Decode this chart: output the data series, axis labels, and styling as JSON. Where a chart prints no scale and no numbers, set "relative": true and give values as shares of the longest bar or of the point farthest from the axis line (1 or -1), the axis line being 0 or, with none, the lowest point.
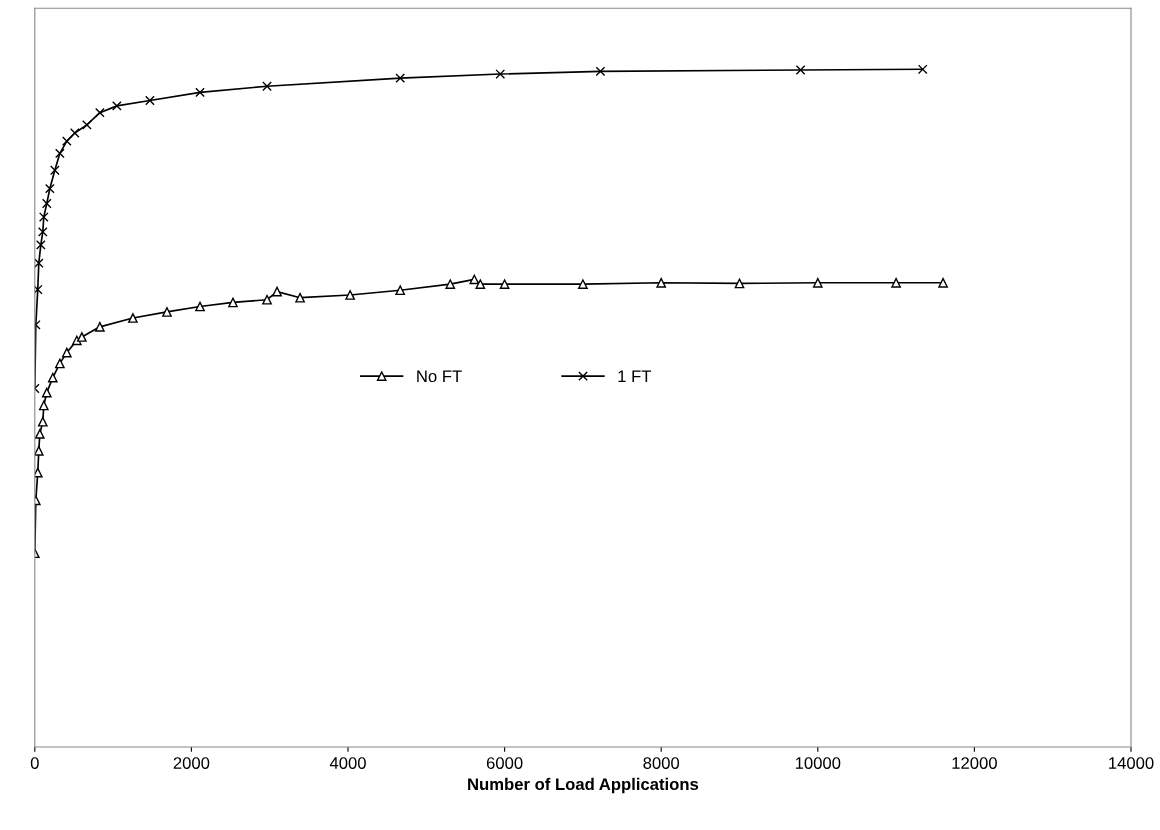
{
  "chart_data": {
    "type": "line",
    "xlabel": "Number of Load Applications",
    "relative": true,
    "xlim": [
      0,
      14000
    ],
    "xticks": [
      0,
      2000,
      4000,
      6000,
      8000,
      10000,
      12000,
      14000
    ],
    "grid": false,
    "legend": "center",
    "line_style": "solid",
    "series": [
      {
        "name": "No FT",
        "color": "#000000",
        "marker": "triangle",
        "x": [
          0,
          13,
          38,
          51,
          64,
          102,
          115,
          153,
          230,
          320,
          409,
          537,
          601,
          831,
          1253,
          1688,
          2110,
          2531,
          2966,
          3094,
          3388,
          4027,
          4667,
          5306,
          5613,
          5690,
          6000,
          7000,
          8000,
          9000,
          10000,
          11000,
          11600
        ],
        "values": [
          0.286,
          0.364,
          0.405,
          0.437,
          0.462,
          0.48,
          0.504,
          0.523,
          0.545,
          0.566,
          0.582,
          0.6,
          0.605,
          0.62,
          0.633,
          0.642,
          0.65,
          0.656,
          0.66,
          0.672,
          0.663,
          0.667,
          0.674,
          0.683,
          0.69,
          0.683,
          0.683,
          0.683,
          0.685,
          0.684,
          0.685,
          0.685,
          0.685
        ]
      },
      {
        "name": "1 FT",
        "color": "#000000",
        "marker": "cross",
        "x": [
          0,
          13,
          38,
          51,
          77,
          102,
          115,
          153,
          192,
          256,
          320,
          409,
          511,
          665,
          831,
          1048,
          1470,
          2110,
          2966,
          4667,
          5945,
          7224,
          9780,
          11340
        ],
        "values": [
          0.529,
          0.623,
          0.675,
          0.714,
          0.741,
          0.76,
          0.782,
          0.802,
          0.824,
          0.851,
          0.876,
          0.894,
          0.906,
          0.918,
          0.936,
          0.946,
          0.954,
          0.966,
          0.975,
          0.987,
          0.993,
          0.997,
          0.999,
          1
        ]
      }
    ]
  }
}
